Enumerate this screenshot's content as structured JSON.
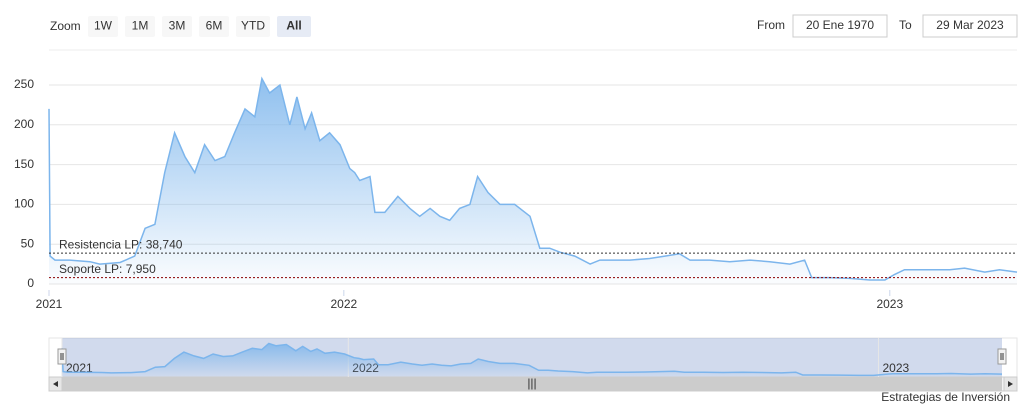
{
  "range_selector": {
    "zoom_label": "Zoom",
    "buttons": [
      "1W",
      "1M",
      "3M",
      "6M",
      "YTD",
      "All"
    ],
    "selected": 5,
    "from_label": "From",
    "from": "20 Ene 1970",
    "to_label": "To",
    "to": "29 Mar 2023"
  },
  "chart_data": {
    "type": "area",
    "x": [
      2021.46,
      2021.462,
      2021.471,
      2021.498,
      2021.535,
      2021.553,
      2021.59,
      2021.617,
      2021.636,
      2021.654,
      2021.672,
      2021.69,
      2021.709,
      2021.727,
      2021.745,
      2021.764,
      2021.782,
      2021.8,
      2021.819,
      2021.837,
      2021.85,
      2021.864,
      2021.883,
      2021.901,
      2021.914,
      2021.929,
      2021.941,
      2021.956,
      2021.974,
      2021.993,
      2022.011,
      2022.02,
      2022.029,
      2022.048,
      2022.057,
      2022.075,
      2022.099,
      2022.121,
      2022.139,
      2022.158,
      2022.176,
      2022.194,
      2022.212,
      2022.231,
      2022.245,
      2022.264,
      2022.286,
      2022.313,
      2022.341,
      2022.359,
      2022.377,
      2022.396,
      2022.423,
      2022.451,
      2022.469,
      2022.496,
      2022.524,
      2022.56,
      2022.588,
      2022.615,
      2022.634,
      2022.67,
      2022.707,
      2022.744,
      2022.78,
      2022.817,
      2022.844,
      2022.857,
      2022.89,
      2022.927,
      2022.963,
      2022.991,
      2023.009,
      2023.027,
      2023.073,
      2023.11,
      2023.137,
      2023.174,
      2023.201,
      2023.233
    ],
    "values": [
      220,
      35,
      30,
      30,
      28,
      25,
      27,
      35,
      70,
      75,
      140,
      190,
      160,
      140,
      175,
      155,
      160,
      190,
      220,
      210,
      258,
      240,
      250,
      200,
      235,
      195,
      215,
      180,
      190,
      175,
      145,
      140,
      130,
      135,
      90,
      90,
      110,
      95,
      85,
      95,
      85,
      80,
      95,
      100,
      135,
      115,
      100,
      100,
      85,
      45,
      45,
      40,
      35,
      25,
      30,
      30,
      30,
      32,
      35,
      38,
      30,
      30,
      28,
      30,
      28,
      25,
      30,
      8,
      8,
      7,
      5,
      5,
      12,
      18,
      18,
      18,
      20,
      15,
      18,
      15
    ],
    "color": "#7cb5ec",
    "xlim": [
      2021.46,
      2023.233
    ],
    "xticks": [
      {
        "value": 2021.46,
        "label": "2021"
      },
      2022,
      2023
    ],
    "ylim": [
      0,
      270
    ],
    "yticks": [
      0,
      50,
      100,
      150,
      200,
      250
    ],
    "grid": true,
    "plot_lines": [
      {
        "value": 38.74,
        "label": "Resistencia LP: 38,740",
        "color": "#333333"
      },
      {
        "value": 7.95,
        "label": "Soporte LP: 7,950",
        "color": "#8b0000"
      }
    ]
  },
  "credit": "Estrategias de Inversión"
}
